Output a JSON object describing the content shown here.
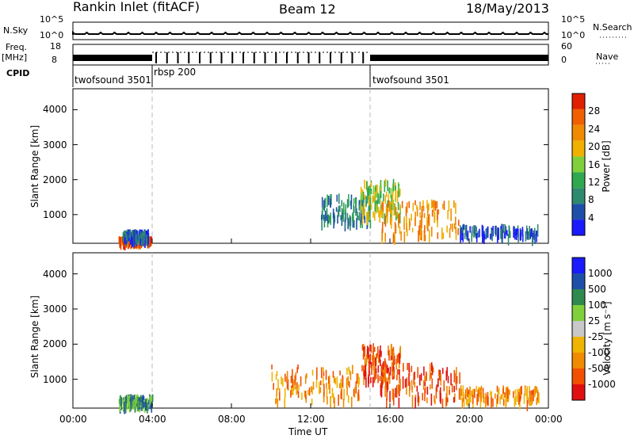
{
  "header": {
    "station": "Rankin Inlet (fitACF)",
    "beam": "Beam 12",
    "date": "18/May/2013"
  },
  "side_labels": {
    "nsky": "N.Sky",
    "freq_line1": "Freq.",
    "freq_line2": "[MHz]",
    "cpid": "CPID",
    "nsearch": "N.Search",
    "nave": "Nave"
  },
  "ticks": {
    "nsky_axis": [
      "10^5",
      "10^0"
    ],
    "freq_axis": [
      "18",
      "8"
    ],
    "nave_axis": [
      "60",
      "0"
    ],
    "x_axis": [
      "00:00",
      "04:00",
      "08:00",
      "12:00",
      "16:00",
      "20:00",
      "00:00"
    ],
    "y_axis": [
      "1000",
      "2000",
      "3000",
      "4000"
    ]
  },
  "cpid_segments": [
    {
      "label": "twofsound 3501",
      "start_hour": 0,
      "end_hour": 4.0
    },
    {
      "label": "rbsp 200",
      "start_hour": 4.0,
      "end_hour": 15.0
    },
    {
      "label": "twofsound 3501",
      "start_hour": 15.0,
      "end_hour": 24
    }
  ],
  "colors": {
    "power": [
      "#1a1aff",
      "#1e4fa8",
      "#2e8a6e",
      "#2fa84f",
      "#7fd03a",
      "#f0b000",
      "#f08a00",
      "#f06000",
      "#e02000"
    ],
    "velocity": [
      "#e01010",
      "#f05000",
      "#f08a00",
      "#f0b400",
      "#c8c8c8",
      "#7fd03a",
      "#2e8a4e",
      "#1e4fa8",
      "#1a1aff"
    ]
  },
  "chart_data": [
    {
      "type": "heatmap",
      "panel": "power",
      "xlabel": "",
      "ylabel": "Slant Range [km]",
      "xlim": [
        0,
        24
      ],
      "ylim": [
        180,
        4600
      ],
      "colorbar_label": "Power [dB]",
      "colorbar_ticks": [
        "4",
        "8",
        "12",
        "16",
        "20",
        "24",
        "28"
      ],
      "colorbar_range": [
        0,
        30
      ],
      "scatter_regions": [
        {
          "hour_start": 2.3,
          "hour_end": 4.0,
          "range_start": 200,
          "range_end": 250,
          "value": 24
        },
        {
          "hour_start": 2.5,
          "hour_end": 3.8,
          "range_start": 250,
          "range_end": 450,
          "value": 4
        },
        {
          "hour_start": 12.5,
          "hour_end": 15.0,
          "range_start": 700,
          "range_end": 1500,
          "value": 8
        },
        {
          "hour_start": 14.5,
          "hour_end": 16.5,
          "range_start": 900,
          "range_end": 1900,
          "value": 16
        },
        {
          "hour_start": 15.5,
          "hour_end": 19.5,
          "range_start": 300,
          "range_end": 1300,
          "value": 22
        },
        {
          "hour_start": 19.5,
          "hour_end": 23.5,
          "range_start": 300,
          "range_end": 600,
          "value": 6
        }
      ]
    },
    {
      "type": "heatmap",
      "panel": "velocity",
      "xlabel": "Time UT",
      "ylabel": "Slant Range [km]",
      "xlim": [
        0,
        24
      ],
      "ylim": [
        180,
        4600
      ],
      "colorbar_label": "Velocity [m s⁻¹]",
      "colorbar_ticks": [
        "-1000",
        "-500",
        "-100",
        "-25",
        "25",
        "100",
        "500",
        "1000"
      ],
      "scatter_regions": [
        {
          "hour_start": 2.3,
          "hour_end": 4.0,
          "range_start": 200,
          "range_end": 450,
          "value": 100
        },
        {
          "hour_start": 10.0,
          "hour_end": 14.5,
          "range_start": 300,
          "range_end": 1300,
          "value": -100
        },
        {
          "hour_start": 14.5,
          "hour_end": 16.5,
          "range_start": 900,
          "range_end": 1900,
          "value": -500
        },
        {
          "hour_start": 15.5,
          "hour_end": 19.5,
          "range_start": 300,
          "range_end": 1400,
          "value": -500
        },
        {
          "hour_start": 19.5,
          "hour_end": 23.5,
          "range_start": 300,
          "range_end": 700,
          "value": -100
        }
      ]
    }
  ]
}
